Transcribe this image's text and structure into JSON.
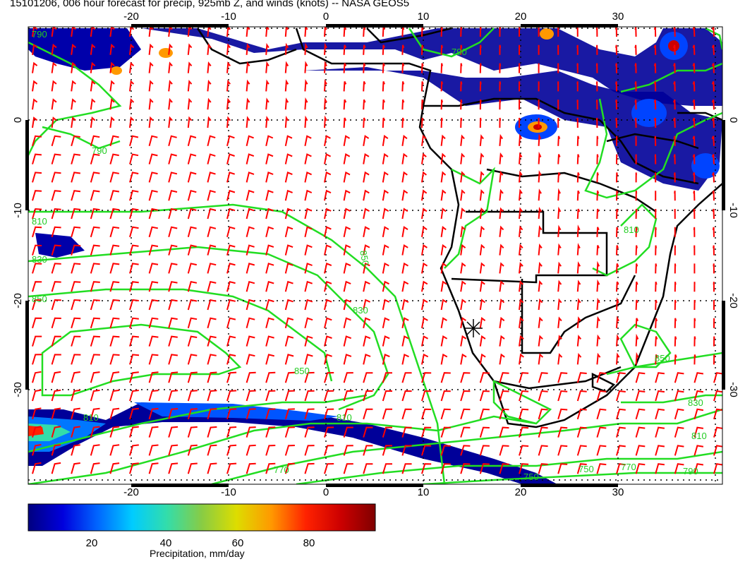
{
  "title": "15101206, 006 hour forecast for precip, 925mb Z, and winds (knots) -- NASA GEOS5",
  "map": {
    "lon_range": [
      -30,
      40
    ],
    "lat_range": [
      -40,
      10
    ],
    "lon_ticks": [
      "-20",
      "-10",
      "0",
      "10",
      "20",
      "30"
    ],
    "lat_ticks_left": [
      "0",
      "-10",
      "-20",
      "-30"
    ],
    "lat_ticks_right": [
      "0",
      "-10",
      "-20",
      "-30"
    ],
    "contour_color": "#22dd22",
    "wind_barb_color": "#ff0000",
    "coast_color": "#000000",
    "grid": true,
    "contour_labels": [
      "790",
      "810",
      "850",
      "830",
      "850",
      "790",
      "770",
      "810",
      "750",
      "850",
      "830",
      "810",
      "790",
      "770",
      "750",
      "850",
      "830",
      "810",
      "790",
      "810"
    ]
  },
  "colorbar": {
    "label": "Precipitation, mm/day",
    "ticks": [
      "20",
      "40",
      "60",
      "80"
    ],
    "colors": [
      "#000080",
      "#0000dd",
      "#0066ff",
      "#00ccff",
      "#33ddaa",
      "#88cc44",
      "#dddd00",
      "#ff9900",
      "#ff2200",
      "#cc0000",
      "#800000"
    ]
  }
}
